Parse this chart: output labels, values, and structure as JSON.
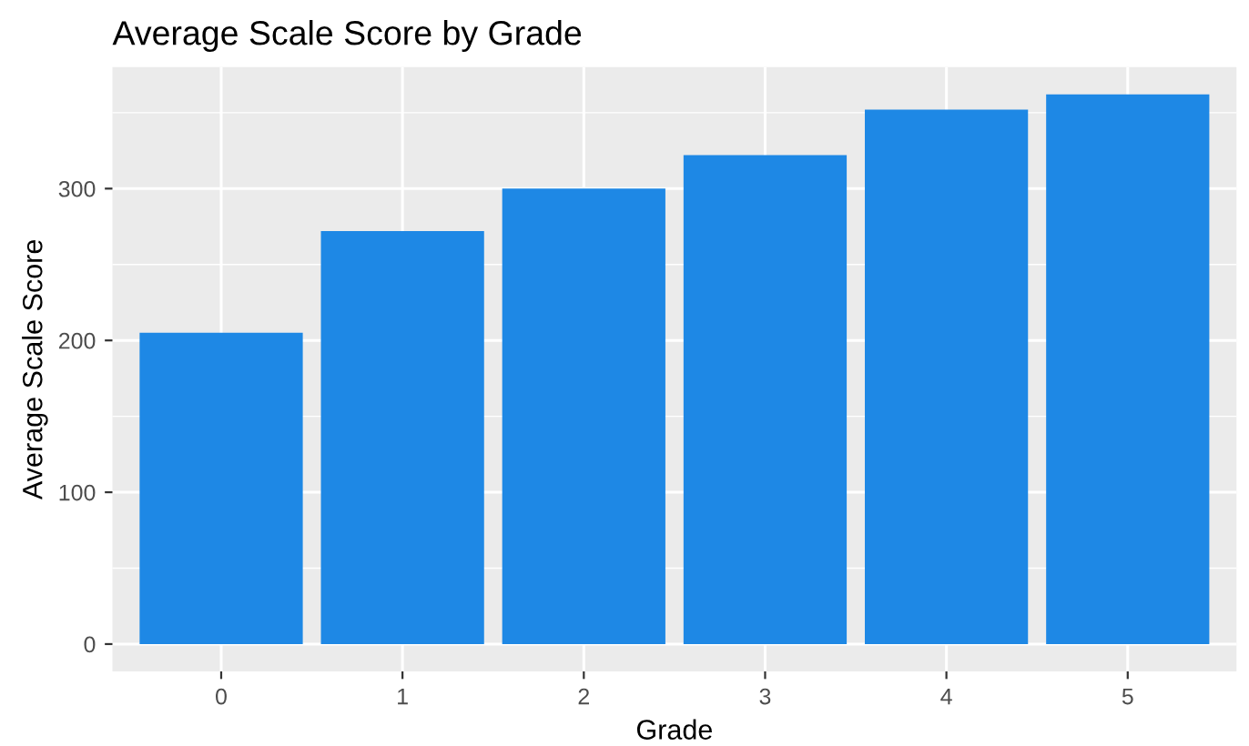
{
  "chart_data": {
    "type": "bar",
    "title": "Average Scale Score by Grade",
    "xlabel": "Grade",
    "ylabel": "Average Scale Score",
    "categories": [
      "0",
      "1",
      "2",
      "3",
      "4",
      "5"
    ],
    "values": [
      205,
      272,
      300,
      322,
      352,
      362
    ],
    "color": "#1e88e5",
    "ylim": [
      -18,
      380
    ],
    "yticks": [
      0,
      100,
      200,
      300
    ],
    "grid": true
  }
}
